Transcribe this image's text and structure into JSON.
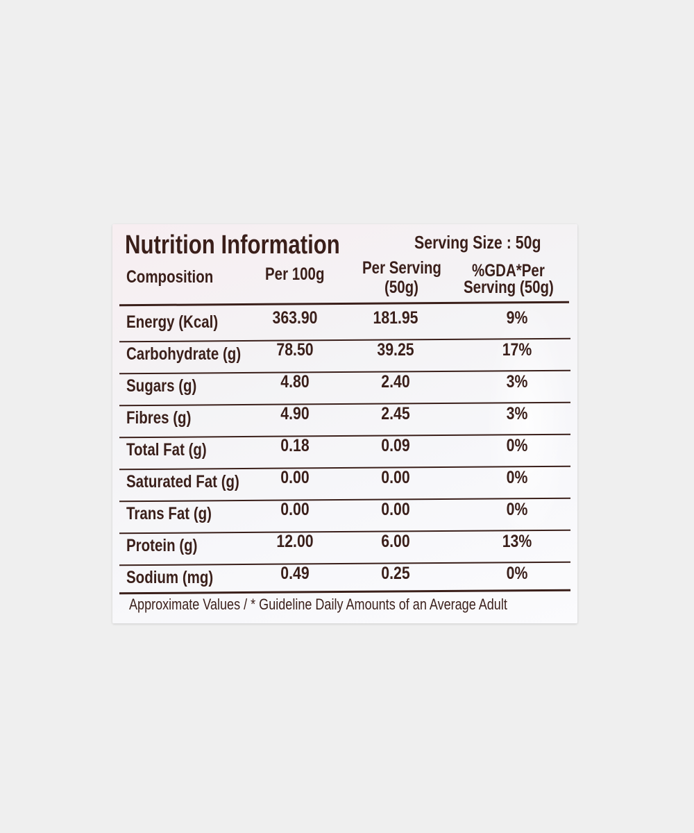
{
  "panel": {
    "title": "Nutrition Information",
    "serving_size": "Serving Size : 50g",
    "headers": {
      "composition": "Composition",
      "per_100g": "Per 100g",
      "per_serving_line1": "Per Serving",
      "per_serving_line2": "(50g)",
      "gda_line1": "%GDA*Per",
      "gda_line2": "Serving (50g)"
    },
    "rows": [
      {
        "name": "Energy (Kcal)",
        "per_100g": "363.90",
        "per_serving": "181.95",
        "gda": "9%"
      },
      {
        "name": "Carbohydrate (g)",
        "per_100g": "78.50",
        "per_serving": "39.25",
        "gda": "17%"
      },
      {
        "name": "Sugars (g)",
        "per_100g": "4.80",
        "per_serving": "2.40",
        "gda": "3%"
      },
      {
        "name": "Fibres (g)",
        "per_100g": "4.90",
        "per_serving": "2.45",
        "gda": "3%"
      },
      {
        "name": "Total Fat (g)",
        "per_100g": "0.18",
        "per_serving": "0.09",
        "gda": "0%"
      },
      {
        "name": "Saturated Fat (g)",
        "per_100g": "0.00",
        "per_serving": "0.00",
        "gda": "0%"
      },
      {
        "name": "Trans Fat (g)",
        "per_100g": "0.00",
        "per_serving": "0.00",
        "gda": "0%"
      },
      {
        "name": "Protein (g)",
        "per_100g": "12.00",
        "per_serving": "6.00",
        "gda": "13%"
      },
      {
        "name": "Sodium (mg)",
        "per_100g": "0.49",
        "per_serving": "0.25",
        "gda": "0%"
      }
    ],
    "footnote": "Approximate Values / * Guideline Daily Amounts of an Average Adult"
  }
}
